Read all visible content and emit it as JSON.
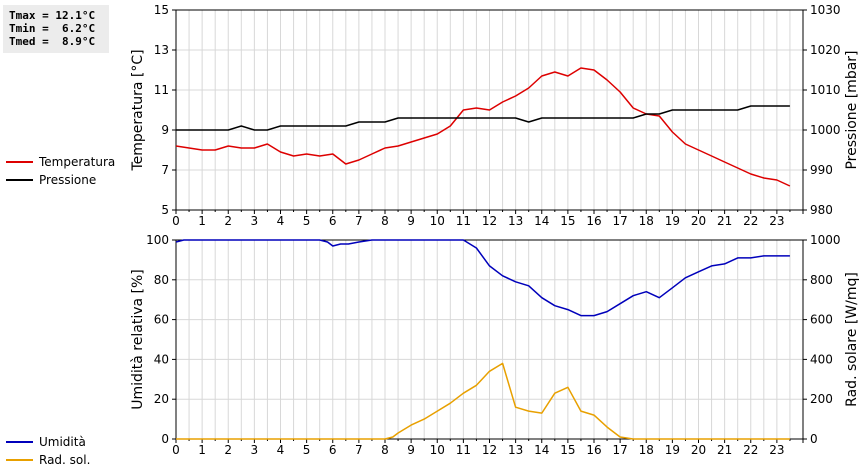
{
  "stats": {
    "tmax": "Tmax = 12.1°C",
    "tmin": "Tmin =  6.2°C",
    "tmed": "Tmed =  8.9°C"
  },
  "chart_data": [
    {
      "type": "line",
      "xlabel": "",
      "x_ticks": [
        0,
        1,
        2,
        3,
        4,
        5,
        6,
        7,
        8,
        9,
        10,
        11,
        12,
        13,
        14,
        15,
        16,
        17,
        18,
        19,
        20,
        21,
        22,
        23
      ],
      "xlim": [
        0,
        24
      ],
      "grid": true,
      "legend_position": "left",
      "left_axis": {
        "label": "Temperatura [°C]",
        "range": [
          5,
          15
        ],
        "ticks": [
          5,
          7,
          9,
          11,
          13,
          15
        ]
      },
      "right_axis": {
        "label": "Pressione [mbar]",
        "range": [
          980,
          1030
        ],
        "ticks": [
          980,
          990,
          1000,
          1010,
          1020,
          1030
        ]
      },
      "series": [
        {
          "name": "Temperatura",
          "axis": "left",
          "color": "#dd0000",
          "x": [
            0,
            0.5,
            1,
            1.5,
            2,
            2.5,
            3,
            3.5,
            4,
            4.5,
            5,
            5.5,
            6,
            6.5,
            7,
            7.5,
            8,
            8.5,
            9,
            9.5,
            10,
            10.5,
            11,
            11.5,
            12,
            12.5,
            13,
            13.5,
            14,
            14.5,
            15,
            15.5,
            16,
            16.5,
            17,
            17.5,
            18,
            18.5,
            19,
            19.5,
            20,
            20.5,
            21,
            21.5,
            22,
            22.5,
            23,
            23.5
          ],
          "y": [
            8.2,
            8.1,
            8.0,
            8.0,
            8.2,
            8.1,
            8.1,
            8.3,
            7.9,
            7.7,
            7.8,
            7.7,
            7.8,
            7.3,
            7.5,
            7.8,
            8.1,
            8.2,
            8.4,
            8.6,
            8.8,
            9.2,
            10.0,
            10.1,
            10.0,
            10.4,
            10.7,
            11.1,
            11.7,
            11.9,
            11.7,
            12.1,
            12.0,
            11.5,
            10.9,
            10.1,
            9.8,
            9.7,
            8.9,
            8.3,
            8.0,
            7.7,
            7.4,
            7.1,
            6.8,
            6.6,
            6.5,
            6.2
          ]
        },
        {
          "name": "Pressione",
          "axis": "right",
          "color": "#000000",
          "x": [
            0,
            0.5,
            1,
            1.5,
            2,
            2.5,
            3,
            3.5,
            4,
            4.5,
            5,
            5.5,
            6,
            6.5,
            7,
            7.5,
            8,
            8.5,
            9,
            9.5,
            10,
            10.5,
            11,
            11.5,
            12,
            12.5,
            13,
            13.5,
            14,
            14.5,
            15,
            15.5,
            16,
            16.5,
            17,
            17.5,
            18,
            18.5,
            19,
            19.5,
            20,
            20.5,
            21,
            21.5,
            22,
            22.5,
            23,
            23.5
          ],
          "y": [
            1000,
            1000,
            1000,
            1000,
            1000,
            1001,
            1000,
            1000,
            1001,
            1001,
            1001,
            1001,
            1001,
            1001,
            1002,
            1002,
            1002,
            1003,
            1003,
            1003,
            1003,
            1003,
            1003,
            1003,
            1003,
            1003,
            1003,
            1002,
            1003,
            1003,
            1003,
            1003,
            1003,
            1003,
            1003,
            1003,
            1004,
            1004,
            1005,
            1005,
            1005,
            1005,
            1005,
            1005,
            1006,
            1006,
            1006,
            1006
          ]
        }
      ]
    },
    {
      "type": "line",
      "xlabel": "",
      "x_ticks": [
        0,
        1,
        2,
        3,
        4,
        5,
        6,
        7,
        8,
        9,
        10,
        11,
        12,
        13,
        14,
        15,
        16,
        17,
        18,
        19,
        20,
        21,
        22,
        23
      ],
      "xlim": [
        0,
        24
      ],
      "grid": true,
      "legend_position": "left",
      "left_axis": {
        "label": "Umidità relativa [%]",
        "range": [
          0,
          100
        ],
        "ticks": [
          0,
          20,
          40,
          60,
          80,
          100
        ]
      },
      "right_axis": {
        "label": "Rad. solare [W/mq]",
        "range": [
          0,
          1000
        ],
        "ticks": [
          0,
          200,
          400,
          600,
          800,
          1000
        ]
      },
      "series": [
        {
          "name": "Umidità",
          "axis": "left",
          "color": "#0000bb",
          "x": [
            0,
            0.3,
            0.6,
            1,
            1.5,
            2,
            2.5,
            3,
            3.5,
            4,
            4.5,
            5,
            5.5,
            5.8,
            6,
            6.3,
            6.6,
            7,
            7.5,
            8,
            8.5,
            9,
            9.5,
            10,
            10.5,
            11,
            11.5,
            12,
            12.5,
            13,
            13.5,
            14,
            14.5,
            15,
            15.5,
            16,
            16.5,
            17,
            17.5,
            18,
            18.5,
            19,
            19.5,
            20,
            20.5,
            21,
            21.5,
            22,
            22.5,
            23,
            23.5
          ],
          "y": [
            99,
            100,
            100,
            100,
            100,
            100,
            100,
            100,
            100,
            100,
            100,
            100,
            100,
            99,
            97,
            98,
            98,
            99,
            100,
            100,
            100,
            100,
            100,
            100,
            100,
            100,
            96,
            87,
            82,
            79,
            77,
            71,
            67,
            65,
            62,
            62,
            64,
            68,
            72,
            74,
            71,
            76,
            81,
            84,
            87,
            88,
            91,
            91,
            92,
            92,
            92
          ]
        },
        {
          "name": "Rad. sol.",
          "axis": "right",
          "color": "#e8a000",
          "x": [
            0,
            0.5,
            1,
            1.5,
            2,
            2.5,
            3,
            3.5,
            4,
            4.5,
            5,
            5.5,
            6,
            6.5,
            7,
            7.5,
            8,
            8.3,
            8.5,
            9,
            9.5,
            10,
            10.5,
            11,
            11.5,
            12,
            12.5,
            13,
            13.5,
            14,
            14.5,
            15,
            15.5,
            16,
            16.5,
            17,
            17.5,
            18,
            18.5,
            19,
            19.5,
            20,
            20.5,
            21,
            21.5,
            22,
            22.5,
            23,
            23.5
          ],
          "y": [
            0,
            0,
            0,
            0,
            0,
            0,
            0,
            0,
            0,
            0,
            0,
            0,
            0,
            0,
            0,
            0,
            0,
            10,
            30,
            70,
            100,
            140,
            180,
            230,
            270,
            340,
            380,
            160,
            140,
            130,
            230,
            260,
            140,
            120,
            60,
            10,
            0,
            0,
            0,
            0,
            0,
            0,
            0,
            0,
            0,
            0,
            0,
            0,
            0
          ]
        }
      ]
    }
  ]
}
